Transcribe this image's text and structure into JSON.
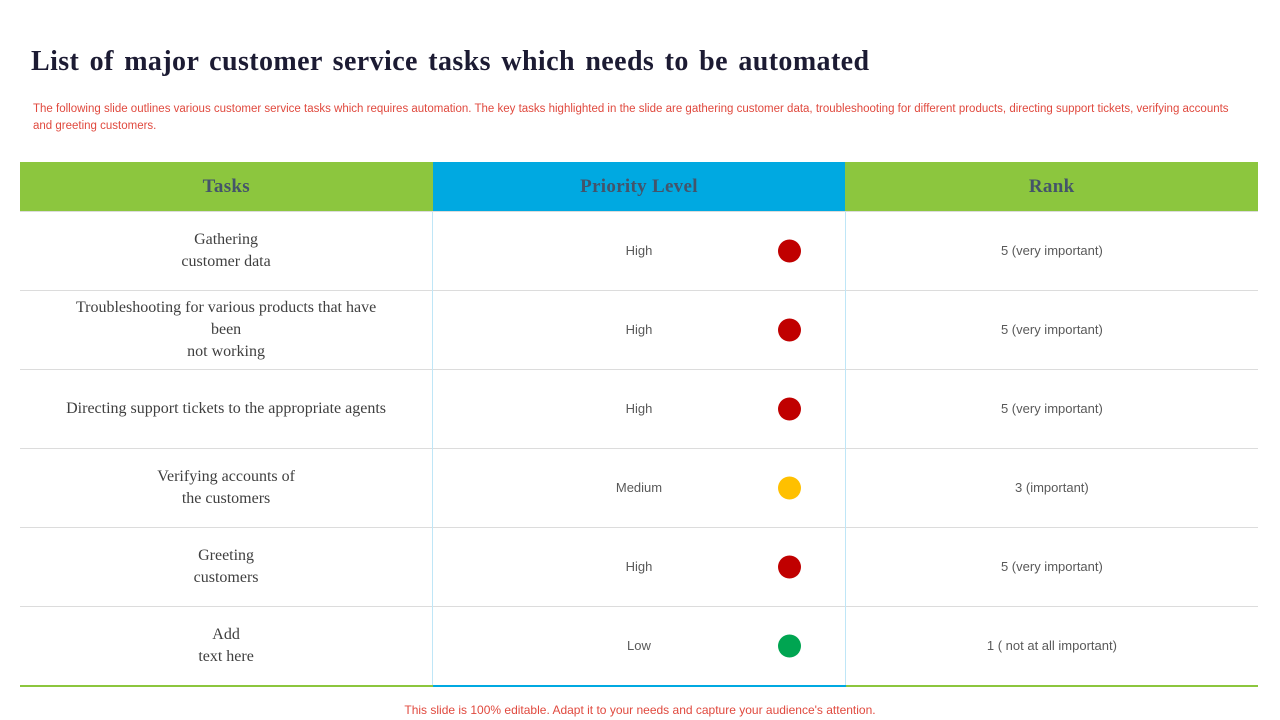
{
  "slide": {
    "title": "List of major customer service tasks which needs to be automated",
    "description": "The following slide outlines various customer service tasks which requires automation. The key tasks highlighted in the slide are gathering customer data, troubleshooting for different products, directing support tickets, verifying accounts and greeting customers.",
    "footer": "This slide is 100% editable. Adapt it to your needs and capture your audience's attention."
  },
  "table": {
    "headers": [
      "Tasks",
      "Priority Level",
      "Rank"
    ],
    "rows": [
      {
        "task": "Gathering\ncustomer data",
        "priority": "High",
        "priority_color": "#c00000",
        "rank": "5 (very important)"
      },
      {
        "task": "Troubleshooting for various products that have\nbeen\nnot working",
        "priority": "High",
        "priority_color": "#c00000",
        "rank": "5 (very important)"
      },
      {
        "task": "Directing support tickets to the appropriate agents",
        "priority": "High",
        "priority_color": "#c00000",
        "rank": "5 (very important)"
      },
      {
        "task": "Verifying accounts of\nthe customers",
        "priority": "Medium",
        "priority_color": "#ffc000",
        "rank": "3 (important)"
      },
      {
        "task": "Greeting\ncustomers",
        "priority": "High",
        "priority_color": "#c00000",
        "rank": "5 (very important)"
      },
      {
        "task": "Add\ntext here",
        "priority": "Low",
        "priority_color": "#00a551",
        "rank": "1 ( not at all important)"
      }
    ]
  },
  "colors": {
    "header_green": "#8cc63e",
    "header_blue": "#00a9e1",
    "accent_red": "#e0493e",
    "title_color": "#1c1b33",
    "header_text": "#44546a"
  }
}
